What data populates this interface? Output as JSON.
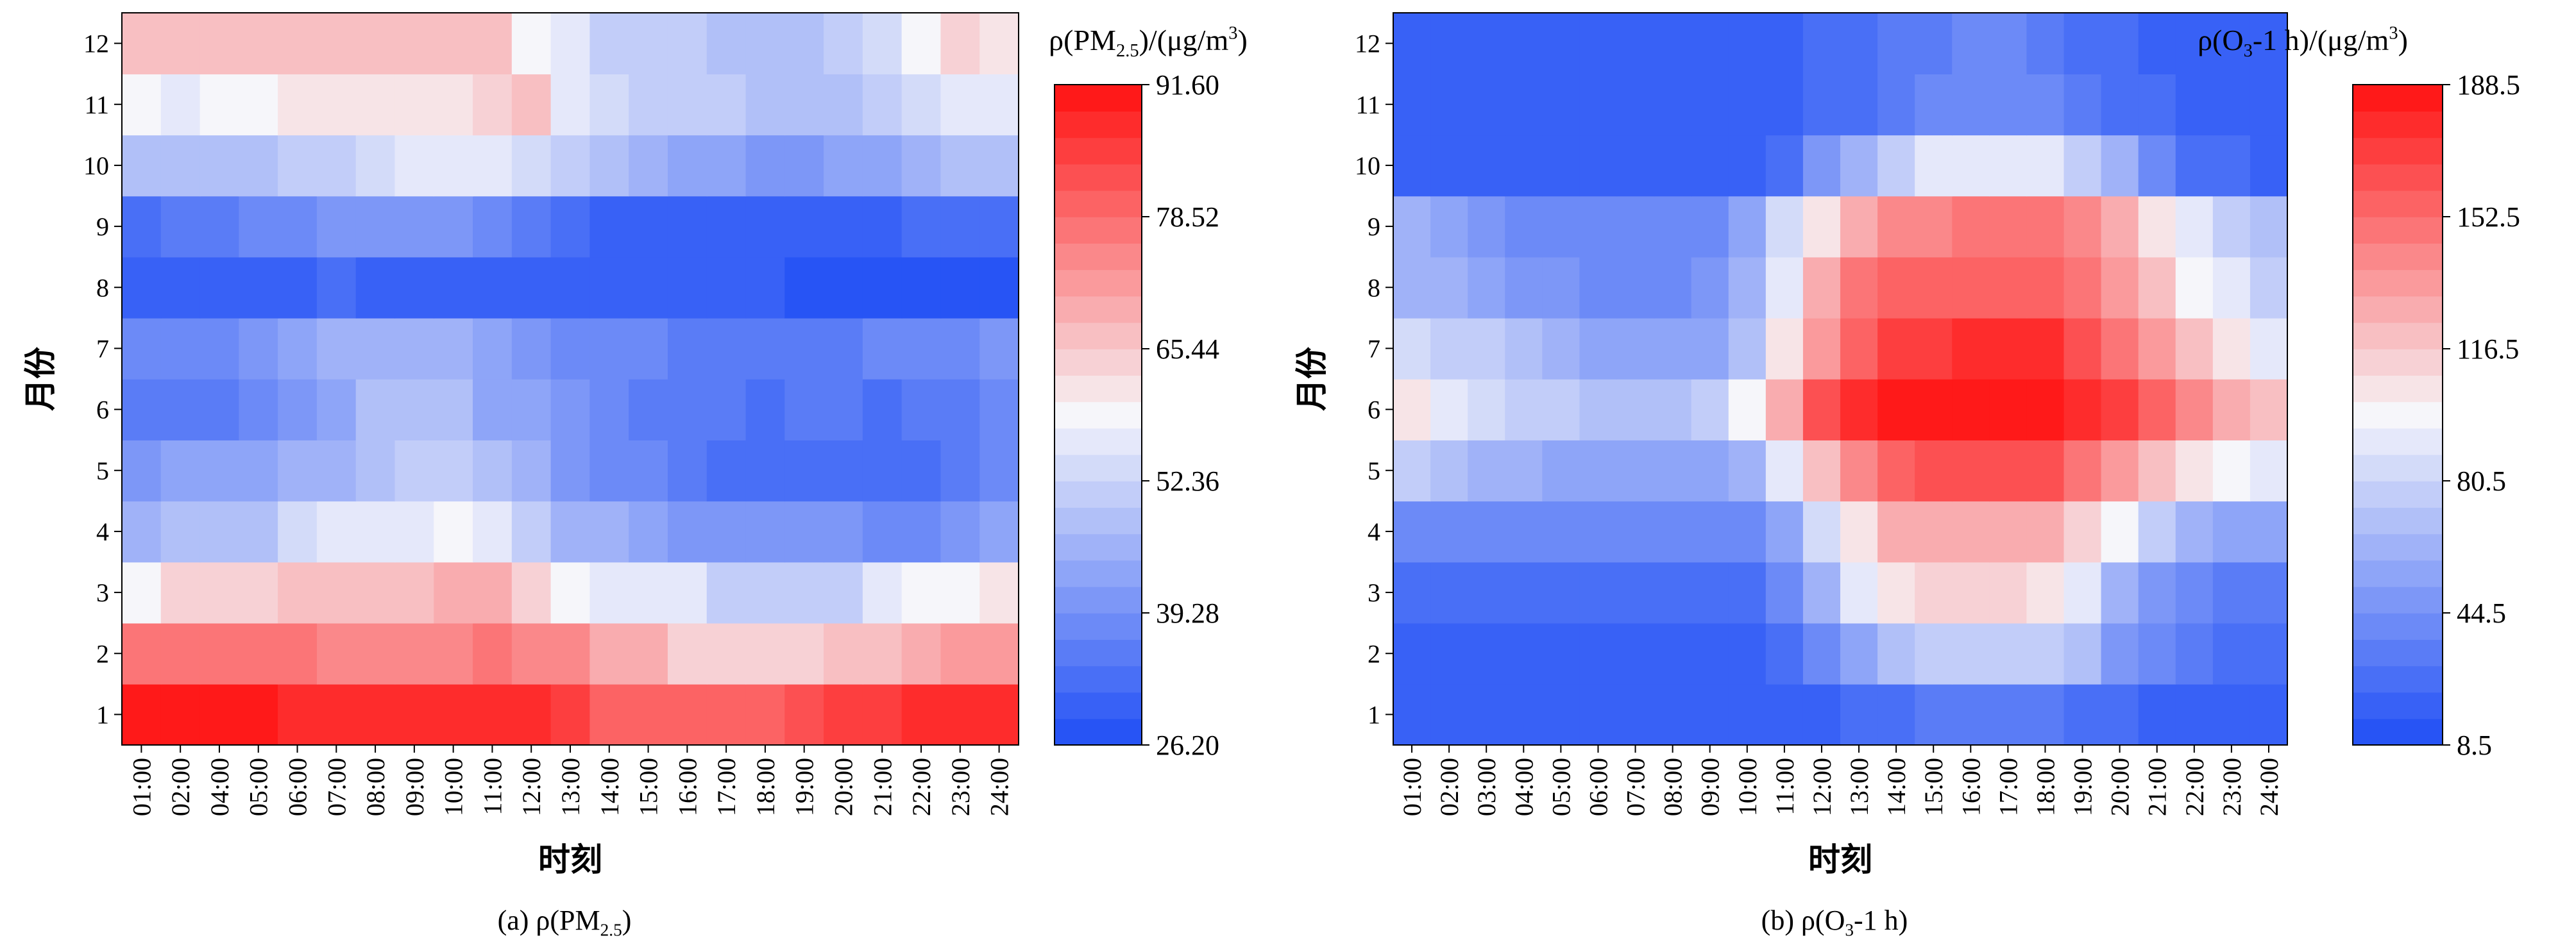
{
  "chart_data": [
    {
      "type": "heatmap",
      "caption": "(a)",
      "caption_quantity": "ρ(PM2.5)",
      "xlabel": "时刻",
      "ylabel": "月份",
      "x": [
        "01:00",
        "02:00",
        "04:00",
        "05:00",
        "06:00",
        "07:00",
        "08:00",
        "09:00",
        "10:00",
        "11:00",
        "12:00",
        "13:00",
        "14:00",
        "15:00",
        "16:00",
        "17:00",
        "18:00",
        "19:00",
        "20:00",
        "21:00",
        "22:00",
        "23:00",
        "24:00"
      ],
      "y": [
        "1",
        "2",
        "3",
        "4",
        "5",
        "6",
        "7",
        "8",
        "9",
        "10",
        "11",
        "12"
      ],
      "colorbar": {
        "title": "ρ(PM2.5)/(μg/m3)",
        "min": 26.2,
        "max": 91.6,
        "ticks": [
          "26.20",
          "39.28",
          "52.36",
          "65.44",
          "78.52",
          "91.60"
        ],
        "levels": 25,
        "low_color": "#1e4df5",
        "mid_color": "#f6f6fa",
        "high_color": "#ff1010"
      },
      "values": [
        [
          89,
          89,
          89,
          89,
          88,
          88,
          87,
          87,
          87,
          88,
          87,
          85,
          80,
          79,
          80,
          81,
          80,
          82,
          85,
          86,
          87,
          88,
          88
        ],
        [
          76,
          76,
          76,
          76,
          76,
          74,
          74,
          74,
          75,
          76,
          75,
          74,
          70,
          69,
          65,
          64,
          64,
          64,
          66,
          68,
          70,
          71,
          71
        ],
        [
          60,
          64,
          64,
          64,
          67,
          67,
          67,
          68,
          70,
          70,
          65,
          58,
          57,
          55,
          55,
          52,
          52,
          52,
          52,
          55,
          58,
          60,
          62
        ],
        [
          45,
          49,
          49,
          49,
          54,
          56,
          56,
          57,
          58,
          57,
          52,
          47,
          45,
          44,
          41,
          40,
          40,
          40,
          40,
          37,
          37,
          40,
          44
        ],
        [
          40,
          42,
          42,
          42,
          46,
          46,
          48,
          50,
          50,
          48,
          46,
          40,
          39,
          38,
          36,
          34,
          34,
          33,
          33,
          33,
          34,
          36,
          37
        ],
        [
          36,
          36,
          36,
          38,
          40,
          43,
          48,
          48,
          49,
          44,
          44,
          40,
          38,
          36,
          35,
          35,
          34,
          35,
          35,
          34,
          35,
          36,
          37
        ],
        [
          38,
          38,
          38,
          40,
          44,
          46,
          46,
          46,
          46,
          43,
          41,
          39,
          39,
          37,
          36,
          36,
          35,
          36,
          36,
          37,
          37,
          37,
          40
        ],
        [
          30,
          30,
          30,
          31,
          31,
          32,
          31,
          31,
          31,
          30,
          30,
          30,
          29,
          29,
          29,
          29,
          29,
          28,
          28,
          28,
          28,
          28,
          28
        ],
        [
          34,
          36,
          36,
          37,
          38,
          40,
          40,
          40,
          40,
          37,
          36,
          32,
          31,
          31,
          31,
          31,
          31,
          31,
          31,
          31,
          32,
          33,
          33
        ],
        [
          48,
          48,
          48,
          48,
          52,
          52,
          54,
          56,
          56,
          56,
          54,
          50,
          48,
          46,
          43,
          42,
          40,
          40,
          42,
          44,
          47,
          48,
          48
        ],
        [
          60,
          56,
          58,
          58,
          62,
          62,
          62,
          62,
          62,
          64,
          66,
          55,
          53,
          52,
          51,
          50,
          49,
          49,
          49,
          51,
          54,
          55,
          56
        ],
        [
          66,
          66,
          66,
          66,
          66,
          66,
          66,
          66,
          66,
          66,
          60,
          57,
          52,
          52,
          51,
          48,
          48,
          48,
          50,
          53,
          60,
          63,
          62
        ]
      ]
    },
    {
      "type": "heatmap",
      "caption": "(b)",
      "caption_quantity": "ρ(O3-1 h)",
      "xlabel": "时刻",
      "ylabel": "月份",
      "x": [
        "01:00",
        "02:00",
        "03:00",
        "04:00",
        "05:00",
        "06:00",
        "07:00",
        "08:00",
        "09:00",
        "10:00",
        "11:00",
        "12:00",
        "13:00",
        "14:00",
        "15:00",
        "16:00",
        "17:00",
        "18:00",
        "19:00",
        "20:00",
        "21:00",
        "22:00",
        "23:00",
        "24:00"
      ],
      "y": [
        "1",
        "2",
        "3",
        "4",
        "5",
        "6",
        "7",
        "8",
        "9",
        "10",
        "11",
        "12"
      ],
      "colorbar": {
        "title": "ρ(O3-1 h)/(μg/m3)",
        "min": 8.5,
        "max": 188.5,
        "ticks": [
          "8.5",
          "44.5",
          "80.5",
          "116.5",
          "152.5",
          "188.5"
        ],
        "levels": 25,
        "low_color": "#1e4df5",
        "mid_color": "#f6f6fa",
        "high_color": "#ff1010"
      },
      "values": [
        [
          18,
          18,
          18,
          18,
          18,
          18,
          18,
          18,
          18,
          18,
          18,
          22,
          26,
          30,
          34,
          36,
          36,
          34,
          30,
          26,
          22,
          20,
          18,
          18
        ],
        [
          20,
          20,
          20,
          20,
          20,
          20,
          20,
          20,
          20,
          20,
          24,
          40,
          56,
          68,
          76,
          80,
          80,
          78,
          70,
          50,
          40,
          34,
          30,
          28
        ],
        [
          28,
          28,
          28,
          28,
          28,
          28,
          28,
          28,
          28,
          28,
          38,
          60,
          90,
          104,
          110,
          112,
          110,
          104,
          92,
          66,
          48,
          40,
          36,
          34
        ],
        [
          40,
          40,
          40,
          40,
          38,
          38,
          38,
          38,
          38,
          40,
          58,
          84,
          106,
          124,
          126,
          128,
          128,
          124,
          116,
          98,
          78,
          62,
          56,
          54
        ],
        [
          76,
          70,
          64,
          60,
          56,
          52,
          52,
          52,
          52,
          60,
          92,
          122,
          140,
          156,
          160,
          160,
          160,
          160,
          152,
          134,
          120,
          108,
          98,
          94
        ],
        [
          108,
          90,
          84,
          80,
          74,
          68,
          68,
          68,
          76,
          96,
          130,
          160,
          178,
          184,
          186,
          186,
          186,
          184,
          180,
          170,
          154,
          140,
          126,
          118
        ],
        [
          86,
          80,
          76,
          70,
          62,
          54,
          52,
          52,
          58,
          72,
          104,
          134,
          158,
          170,
          174,
          176,
          176,
          176,
          166,
          150,
          136,
          120,
          104,
          94
        ],
        [
          66,
          60,
          54,
          48,
          46,
          44,
          44,
          44,
          48,
          60,
          92,
          126,
          150,
          156,
          156,
          156,
          156,
          156,
          146,
          136,
          118,
          100,
          90,
          80
        ],
        [
          60,
          52,
          48,
          44,
          44,
          42,
          40,
          40,
          44,
          56,
          82,
          106,
          126,
          140,
          140,
          146,
          146,
          146,
          140,
          124,
          108,
          92,
          80,
          68
        ],
        [
          22,
          22,
          22,
          22,
          22,
          22,
          22,
          22,
          22,
          22,
          28,
          46,
          60,
          80,
          90,
          94,
          94,
          90,
          80,
          60,
          40,
          30,
          24,
          22
        ],
        [
          20,
          20,
          20,
          20,
          20,
          20,
          20,
          20,
          20,
          20,
          22,
          26,
          30,
          34,
          38,
          40,
          40,
          38,
          34,
          28,
          24,
          22,
          20,
          20
        ],
        [
          18,
          18,
          18,
          18,
          18,
          18,
          18,
          18,
          18,
          18,
          20,
          24,
          28,
          32,
          36,
          38,
          38,
          36,
          30,
          26,
          22,
          20,
          18,
          18
        ]
      ]
    }
  ]
}
